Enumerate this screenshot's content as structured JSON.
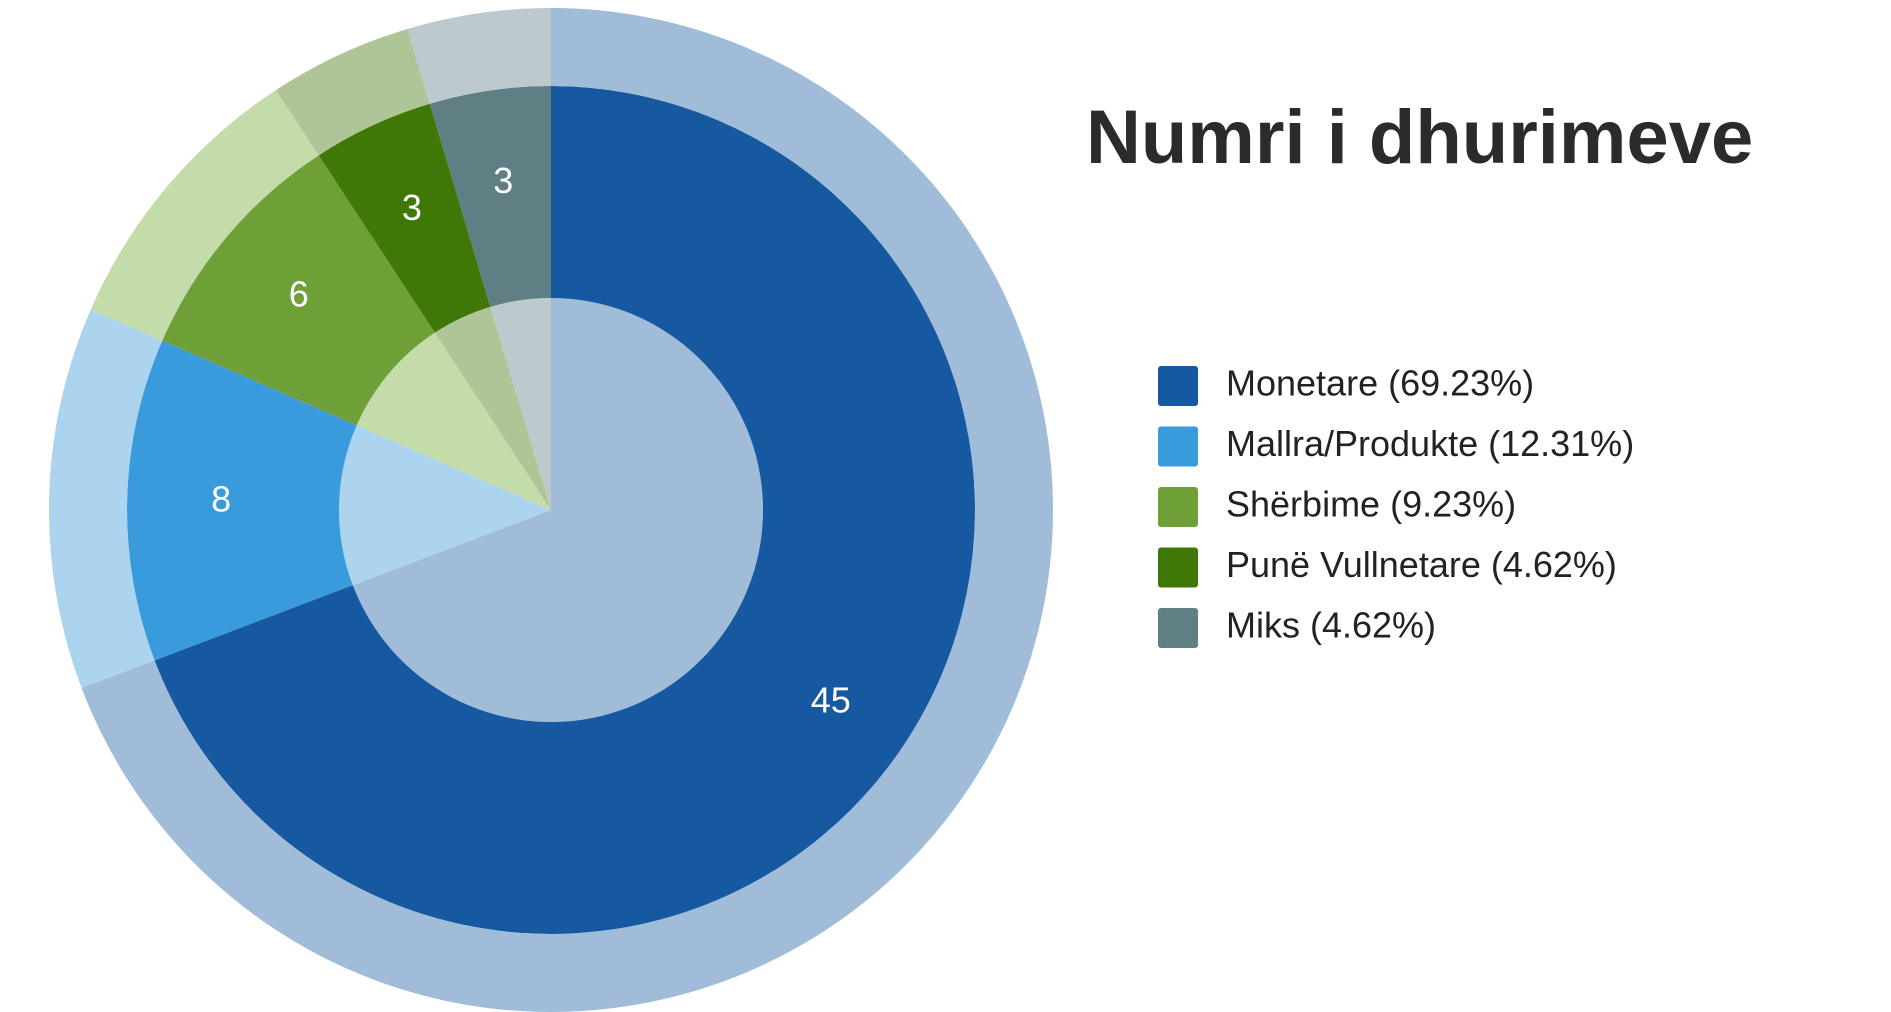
{
  "chart_data": {
    "type": "pie",
    "title": "Numri i dhurimeve",
    "categories": [
      "Monetare (69.23%)",
      "Mallra/Produkte (12.31%)",
      "Shërbime (9.23%)",
      "Punë Vullnetare (4.62%)",
      "Miks (4.62%)"
    ],
    "values": [
      45,
      8,
      6,
      3,
      3
    ],
    "colors": [
      "#1659a0",
      "#3a9bdc",
      "#6fa037",
      "#3f7806",
      "#607f85"
    ],
    "light_colors": [
      "#a0bcd8",
      "#acd4ef",
      "#c4dbaa",
      "#aec597",
      "#bdcacd"
    ],
    "legend": "right"
  }
}
